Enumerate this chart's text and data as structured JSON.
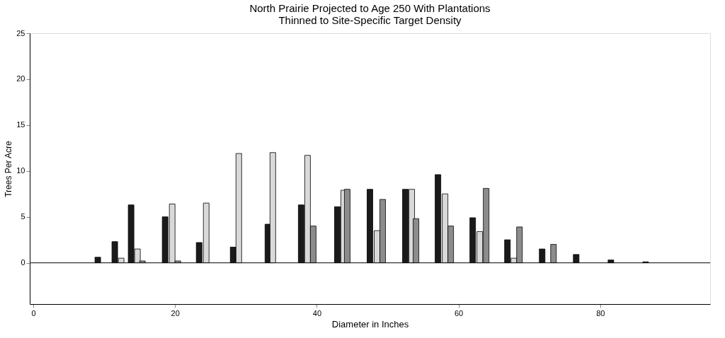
{
  "chart_data": {
    "type": "bar",
    "title": [
      "North Prairie Projected to Age 250 With Plantations",
      "Thinned to Site-Specific Target Density"
    ],
    "xlabel": "Diameter in Inches",
    "ylabel": "Trees Per Acre",
    "xlim": [
      0,
      95
    ],
    "xticks": [
      0,
      20,
      40,
      60,
      80
    ],
    "ylim": [
      -4.5,
      25
    ],
    "yticks": [
      0,
      5,
      10,
      15,
      20,
      25
    ],
    "grid": false,
    "ref_lines": [
      {
        "axis": "y",
        "value": 0,
        "color": "#333333"
      }
    ],
    "series": [
      {
        "color": "#1a1a1a",
        "x": [
          9.1,
          11.5,
          13.8,
          18.6,
          23.4,
          28.2,
          33.1,
          37.8,
          42.9,
          47.5,
          52.5,
          57.1,
          62.0,
          66.9,
          71.8,
          76.6,
          81.5,
          86.4
        ],
        "values": [
          0.6,
          2.3,
          6.3,
          5.0,
          2.2,
          1.7,
          4.2,
          6.3,
          6.1,
          8.0,
          8.0,
          9.6,
          4.9,
          2.5,
          1.5,
          0.9,
          0.3,
          0.1
        ]
      },
      {
        "color": "#d9d9d9",
        "x": [
          12.4,
          14.7,
          19.6,
          24.4,
          29.0,
          33.8,
          38.7,
          43.8,
          48.5,
          53.4,
          58.1,
          63.0,
          67.8
        ],
        "values": [
          0.5,
          1.5,
          6.4,
          6.5,
          11.9,
          12.0,
          11.7,
          7.9,
          3.5,
          8.0,
          7.5,
          3.4,
          0.5
        ]
      },
      {
        "color": "#8c8c8c",
        "x": [
          15.4,
          20.4,
          39.5,
          44.3,
          49.3,
          54.0,
          58.9,
          63.9,
          68.6,
          73.4
        ],
        "values": [
          0.2,
          0.2,
          4.0,
          8.0,
          6.9,
          4.8,
          4.0,
          8.1,
          3.9,
          2.0
        ]
      }
    ]
  }
}
